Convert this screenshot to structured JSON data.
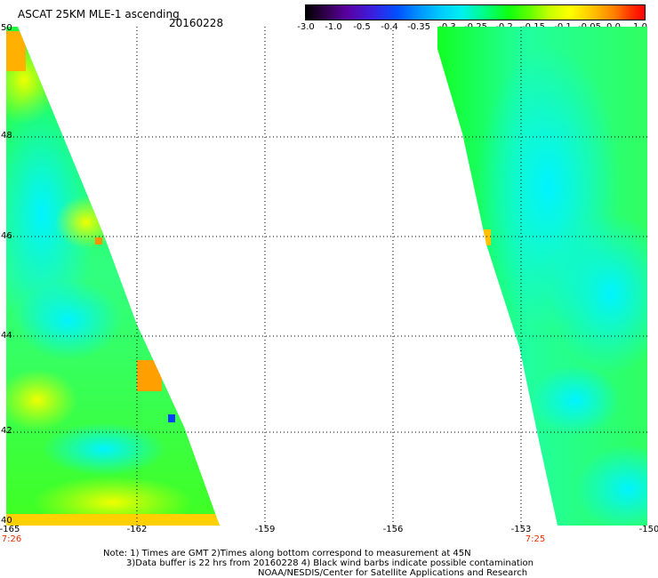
{
  "title": "ASCAT 25KM MLE-1 ascending",
  "date": "20160228",
  "colorbar": {
    "labels": [
      "-3.0",
      "-1.0",
      "-0.5",
      "-0.4",
      "-0.35",
      "-0.3",
      "-0.25",
      "-0.2",
      "-0.15",
      "-0.1",
      "-0.05",
      "0.0",
      "1.0"
    ]
  },
  "map": {
    "lat_labels": [
      "50",
      "48",
      "46",
      "44",
      "42",
      "40"
    ],
    "lon_labels": [
      "-165",
      "-162",
      "-159",
      "-156",
      "-153",
      "-150"
    ],
    "time_labels": [
      "7:26",
      "7:25"
    ],
    "lat_range": [
      40,
      50
    ],
    "lon_range": [
      -165,
      -150
    ],
    "colors": {
      "low": "#00ffff",
      "mid": "#00ff00",
      "high": "#ffff00",
      "max": "#ff8000",
      "grid": "#000000"
    }
  },
  "notes": {
    "line1": "Note: 1) Times are GMT 2)Times along bottom correspond to measurement at 45N",
    "line2": "3)Data buffer is 22 hrs from 20160228 4) Black wind barbs indicate possible contamination",
    "line3": "NOAA/NESDIS/Center for Satellite Applications and Research"
  }
}
